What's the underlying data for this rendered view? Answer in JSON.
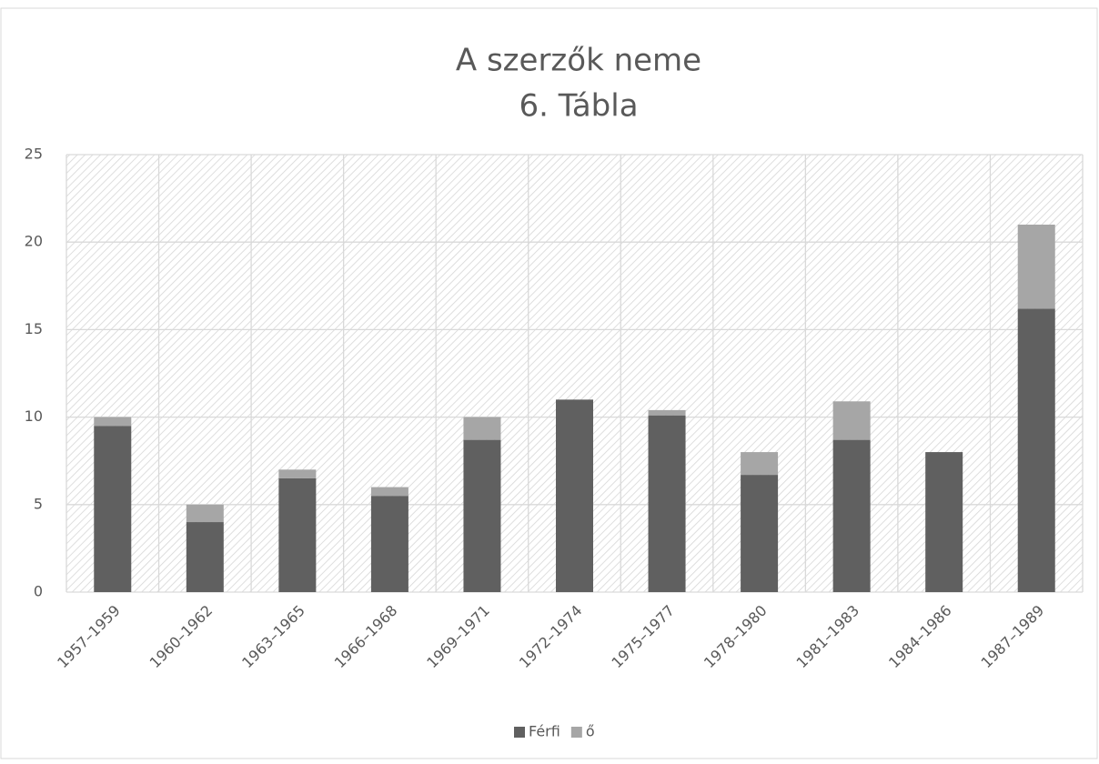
{
  "chart_data": {
    "type": "stacked_bar",
    "title": "A szerzők neme",
    "subtitle": "6. Tábla",
    "categories": [
      "1957–1959",
      "1960–1962",
      "1963–1965",
      "1966–1968",
      "1969–1971",
      "1972–1974",
      "1975–1977",
      "1978–1980",
      "1981–1983",
      "1984–1986",
      "1987–1989"
    ],
    "series": [
      {
        "name": "Férfi",
        "color": "#606060",
        "values": [
          9.5,
          4,
          6.5,
          5.5,
          8.7,
          11,
          10.1,
          6.7,
          8.7,
          8,
          16.2
        ]
      },
      {
        "name": "ő",
        "color": "#a6a6a6",
        "values": [
          0.5,
          1,
          0.5,
          0.5,
          1.3,
          0,
          0.3,
          1.3,
          2.2,
          0,
          4.8
        ]
      }
    ],
    "ylim": [
      0,
      25
    ],
    "yticks": [
      0,
      5,
      10,
      15,
      20,
      25
    ],
    "grid": true,
    "legend": "bottom"
  }
}
